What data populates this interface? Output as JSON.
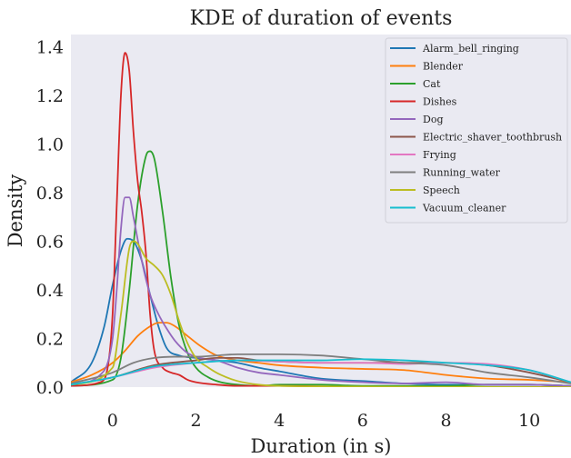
{
  "chart_data": {
    "type": "line",
    "title": "KDE of duration of events",
    "xlabel": "Duration (in s)",
    "ylabel": "Density",
    "xlim": [
      -1,
      11
    ],
    "ylim": [
      0,
      1.45
    ],
    "xticks": [
      "0",
      "2",
      "4",
      "6",
      "8",
      "10"
    ],
    "yticks": [
      "0.0",
      "0.2",
      "0.4",
      "0.6",
      "0.8",
      "1.0",
      "1.2",
      "1.4"
    ],
    "grid": false,
    "legend_position": "top-right",
    "background": "#eaeaf2",
    "series": [
      {
        "name": "Alarm_bell_ringing",
        "color": "#1f77b4",
        "x": [
          -1.0,
          -0.5,
          -0.2,
          0.0,
          0.2,
          0.35,
          0.5,
          0.7,
          0.9,
          1.1,
          1.3,
          1.6,
          2.0,
          2.5,
          3.0,
          3.5,
          4.0,
          5.0,
          6.0,
          7.0,
          8.0,
          9.0,
          10.0,
          11.0
        ],
        "y": [
          0.02,
          0.1,
          0.25,
          0.42,
          0.56,
          0.61,
          0.6,
          0.52,
          0.38,
          0.25,
          0.16,
          0.13,
          0.12,
          0.11,
          0.1,
          0.08,
          0.065,
          0.035,
          0.025,
          0.015,
          0.01,
          0.01,
          0.01,
          0.005
        ]
      },
      {
        "name": "Blender",
        "color": "#ff7f0e",
        "x": [
          -1.0,
          -0.5,
          0.0,
          0.3,
          0.6,
          0.9,
          1.1,
          1.3,
          1.5,
          1.8,
          2.1,
          2.5,
          3.0,
          3.5,
          4.0,
          5.0,
          6.0,
          7.0,
          8.0,
          9.0,
          10.0,
          11.0
        ],
        "y": [
          0.02,
          0.05,
          0.1,
          0.15,
          0.21,
          0.25,
          0.265,
          0.265,
          0.25,
          0.21,
          0.17,
          0.13,
          0.11,
          0.1,
          0.09,
          0.08,
          0.075,
          0.07,
          0.05,
          0.035,
          0.03,
          0.02
        ]
      },
      {
        "name": "Cat",
        "color": "#2ca02c",
        "x": [
          -1.0,
          0.0,
          0.2,
          0.4,
          0.6,
          0.8,
          0.9,
          1.0,
          1.2,
          1.4,
          1.6,
          1.8,
          2.0,
          2.3,
          2.6,
          3.0,
          3.5,
          4.0,
          5.0,
          6.0,
          7.0,
          8.0,
          9.0,
          10.0,
          11.0
        ],
        "y": [
          0.005,
          0.03,
          0.12,
          0.4,
          0.75,
          0.95,
          0.97,
          0.94,
          0.72,
          0.45,
          0.25,
          0.14,
          0.08,
          0.04,
          0.02,
          0.01,
          0.005,
          0.01,
          0.01,
          0.005,
          0.005,
          0.005,
          0.01,
          0.01,
          0.005
        ]
      },
      {
        "name": "Dishes",
        "color": "#d62728",
        "x": [
          -1.0,
          -0.3,
          -0.1,
          0.0,
          0.1,
          0.2,
          0.3,
          0.4,
          0.5,
          0.6,
          0.7,
          0.8,
          0.9,
          1.0,
          1.2,
          1.4,
          1.6,
          1.8,
          2.0,
          2.5,
          3.0,
          4.0,
          6.0,
          8.0,
          11.0
        ],
        "y": [
          0.005,
          0.02,
          0.1,
          0.3,
          0.75,
          1.2,
          1.375,
          1.3,
          1.05,
          0.85,
          0.72,
          0.55,
          0.3,
          0.15,
          0.08,
          0.06,
          0.05,
          0.03,
          0.02,
          0.01,
          0.005,
          0.005,
          0.0,
          0.0,
          0.0
        ]
      },
      {
        "name": "Dog",
        "color": "#9467bd",
        "x": [
          -1.0,
          -0.3,
          0.0,
          0.1,
          0.2,
          0.3,
          0.4,
          0.5,
          0.7,
          0.9,
          1.1,
          1.3,
          1.5,
          1.8,
          2.1,
          2.5,
          3.0,
          3.5,
          4.0,
          5.0,
          6.0,
          7.0,
          8.0,
          9.0,
          10.0,
          11.0
        ],
        "y": [
          0.01,
          0.05,
          0.2,
          0.4,
          0.65,
          0.78,
          0.78,
          0.7,
          0.52,
          0.38,
          0.3,
          0.24,
          0.19,
          0.14,
          0.12,
          0.11,
          0.08,
          0.06,
          0.05,
          0.03,
          0.02,
          0.015,
          0.02,
          0.01,
          0.01,
          0.005
        ]
      },
      {
        "name": "Electric_shaver_toothbrush",
        "color": "#8c564b",
        "x": [
          -1.0,
          0.0,
          1.0,
          2.0,
          2.5,
          3.0,
          3.5,
          4.0,
          5.0,
          6.0,
          7.0,
          8.0,
          9.0,
          10.0,
          11.0
        ],
        "y": [
          0.01,
          0.04,
          0.09,
          0.11,
          0.12,
          0.12,
          0.11,
          0.105,
          0.1,
          0.1,
          0.1,
          0.1,
          0.09,
          0.06,
          0.02
        ]
      },
      {
        "name": "Frying",
        "color": "#e377c2",
        "x": [
          -1.0,
          0.0,
          1.0,
          2.0,
          3.0,
          4.0,
          5.0,
          6.0,
          7.0,
          8.0,
          9.0,
          10.0,
          11.0
        ],
        "y": [
          0.01,
          0.04,
          0.08,
          0.1,
          0.11,
          0.105,
          0.1,
          0.1,
          0.095,
          0.1,
          0.095,
          0.07,
          0.02
        ]
      },
      {
        "name": "Running_water",
        "color": "#7f7f7f",
        "x": [
          -1.0,
          0.0,
          0.5,
          1.0,
          1.5,
          2.0,
          2.5,
          3.0,
          4.0,
          5.0,
          6.0,
          7.0,
          8.0,
          9.0,
          10.0,
          11.0
        ],
        "y": [
          0.015,
          0.06,
          0.1,
          0.12,
          0.125,
          0.125,
          0.13,
          0.135,
          0.135,
          0.13,
          0.115,
          0.1,
          0.09,
          0.06,
          0.04,
          0.015
        ]
      },
      {
        "name": "Speech",
        "color": "#bcbd22",
        "x": [
          -1.0,
          0.0,
          0.2,
          0.4,
          0.5,
          0.6,
          0.8,
          1.0,
          1.2,
          1.4,
          1.6,
          1.8,
          2.0,
          2.3,
          2.6,
          3.0,
          3.5,
          4.0,
          5.0,
          6.0,
          8.0,
          11.0
        ],
        "y": [
          0.01,
          0.08,
          0.3,
          0.57,
          0.6,
          0.59,
          0.53,
          0.5,
          0.46,
          0.38,
          0.27,
          0.18,
          0.12,
          0.08,
          0.05,
          0.025,
          0.01,
          0.005,
          0.003,
          0.002,
          0.001,
          0.0
        ]
      },
      {
        "name": "Vacuum_cleaner",
        "color": "#17becf",
        "x": [
          -1.0,
          0.0,
          1.0,
          2.0,
          3.0,
          4.0,
          5.0,
          6.0,
          7.0,
          8.0,
          9.0,
          10.0,
          11.0
        ],
        "y": [
          0.01,
          0.04,
          0.085,
          0.1,
          0.11,
          0.11,
          0.11,
          0.115,
          0.11,
          0.1,
          0.09,
          0.07,
          0.02
        ]
      }
    ]
  }
}
